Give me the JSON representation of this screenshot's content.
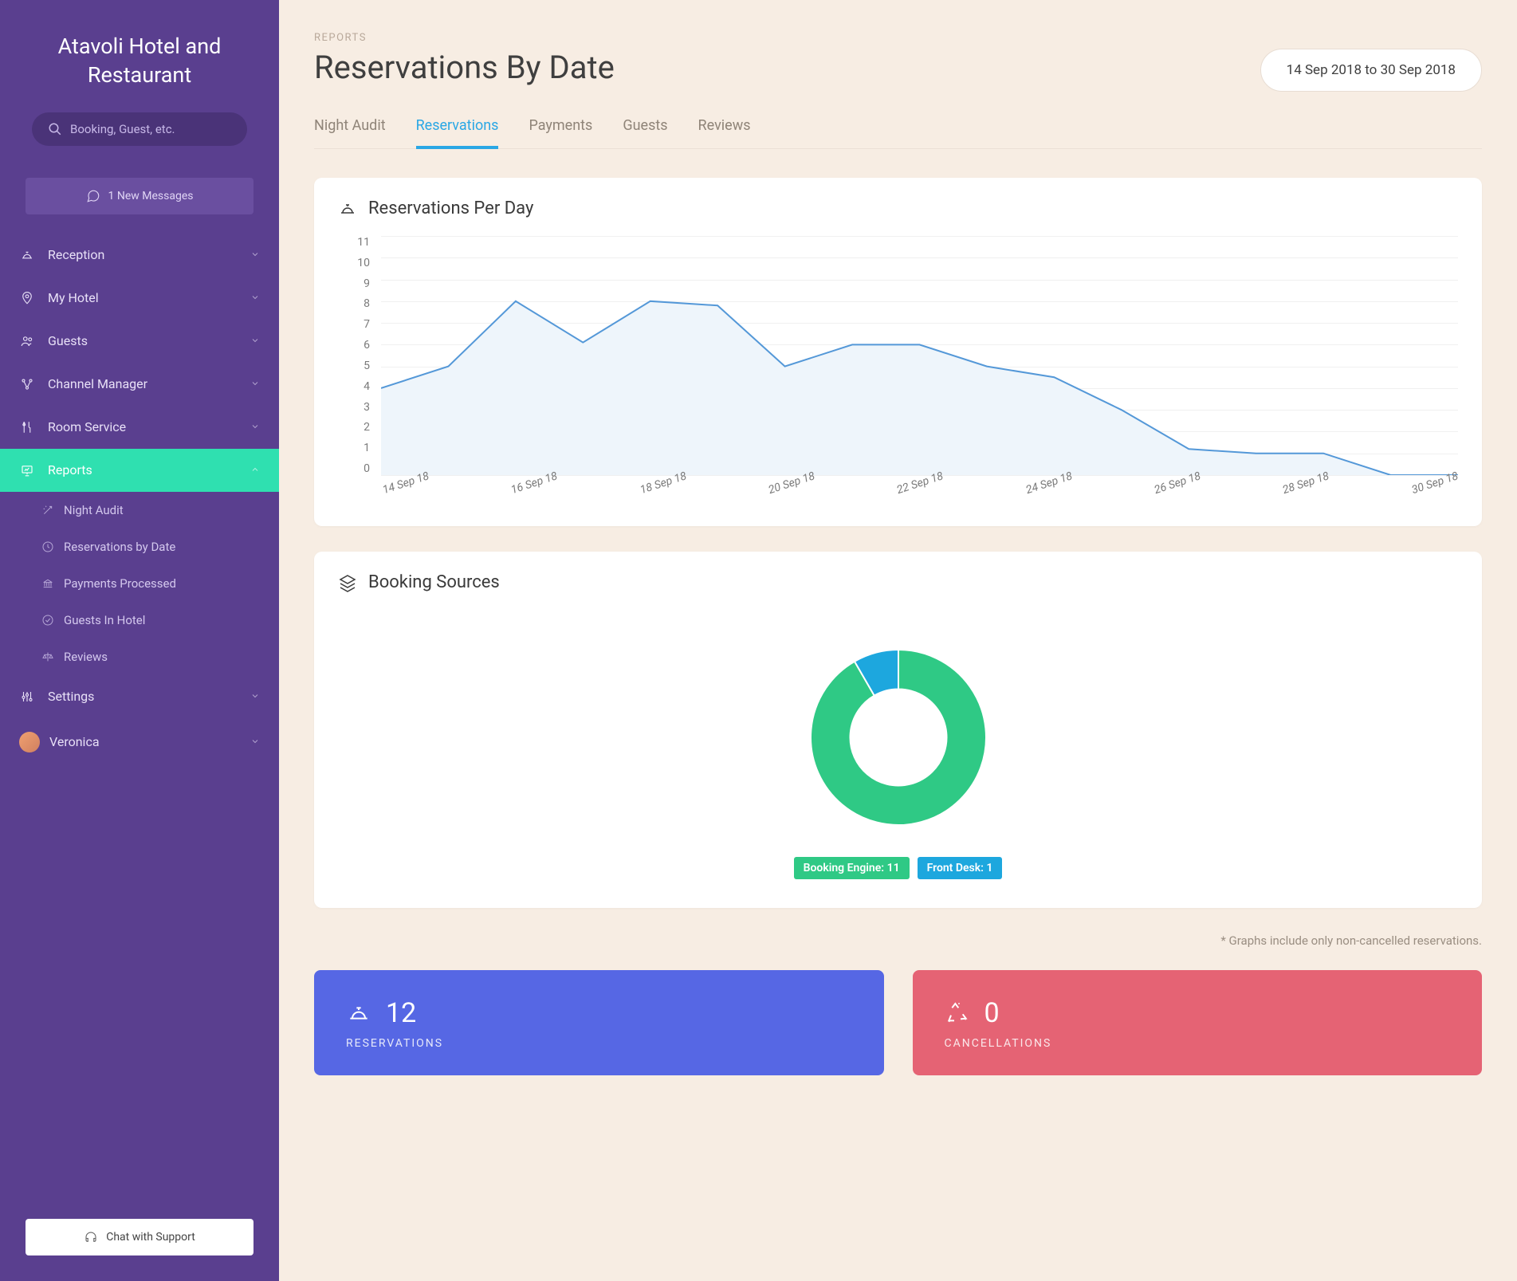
{
  "sidebar": {
    "hotel_name": "Atavoli Hotel and Restaurant",
    "search_placeholder": "Booking, Guest, etc.",
    "messages_label": "1 New Messages",
    "items": [
      {
        "label": "Reception"
      },
      {
        "label": "My Hotel"
      },
      {
        "label": "Guests"
      },
      {
        "label": "Channel Manager"
      },
      {
        "label": "Room Service"
      },
      {
        "label": "Reports",
        "active": true
      },
      {
        "label": "Settings"
      }
    ],
    "reports_sub": [
      {
        "label": "Night Audit"
      },
      {
        "label": "Reservations by Date"
      },
      {
        "label": "Payments Processed"
      },
      {
        "label": "Guests In Hotel"
      },
      {
        "label": "Reviews"
      }
    ],
    "user_name": "Veronica",
    "support_label": "Chat with Support"
  },
  "header": {
    "crumb": "REPORTS",
    "title": "Reservations By Date",
    "date_range": "14 Sep 2018 to 30 Sep 2018"
  },
  "tabs": [
    {
      "label": "Night Audit",
      "active": false
    },
    {
      "label": "Reservations",
      "active": true
    },
    {
      "label": "Payments",
      "active": false
    },
    {
      "label": "Guests",
      "active": false
    },
    {
      "label": "Reviews",
      "active": false
    }
  ],
  "reservations_chart": {
    "title": "Reservations Per Day",
    "type": "area",
    "y_ticks": [
      11,
      10,
      9,
      8,
      7,
      6,
      5,
      4,
      3,
      2,
      1,
      0
    ],
    "ylim": [
      0,
      11
    ],
    "x_labels": [
      "14 Sep 18",
      "16 Sep 18",
      "18 Sep 18",
      "20 Sep 18",
      "22 Sep 18",
      "24 Sep 18",
      "26 Sep 18",
      "28 Sep 18",
      "30 Sep 18"
    ],
    "values": [
      4,
      5,
      8,
      6.1,
      8,
      7.8,
      5,
      6,
      6,
      5,
      4.5,
      3,
      1.2,
      1,
      1,
      0,
      0
    ],
    "line_color": "#5498d8",
    "fill_color": "#eef5fb",
    "grid_color": "#f0f0f0",
    "bg": "#ffffff"
  },
  "sources_chart": {
    "title": "Booking Sources",
    "type": "donut",
    "data": [
      {
        "label": "Booking Engine",
        "value": 11,
        "color": "#2fc985"
      },
      {
        "label": "Front Desk",
        "value": 1,
        "color": "#1da7de"
      }
    ],
    "inner_radius_pct": 55,
    "bg": "#ffffff"
  },
  "footnote": "* Graphs include only non-cancelled reservations.",
  "stats": {
    "reservations": {
      "count": "12",
      "label": "RESERVATIONS",
      "color": "#5667e4"
    },
    "cancellations": {
      "count": "0",
      "label": "CANCELLATIONS",
      "color": "#e56374"
    }
  }
}
